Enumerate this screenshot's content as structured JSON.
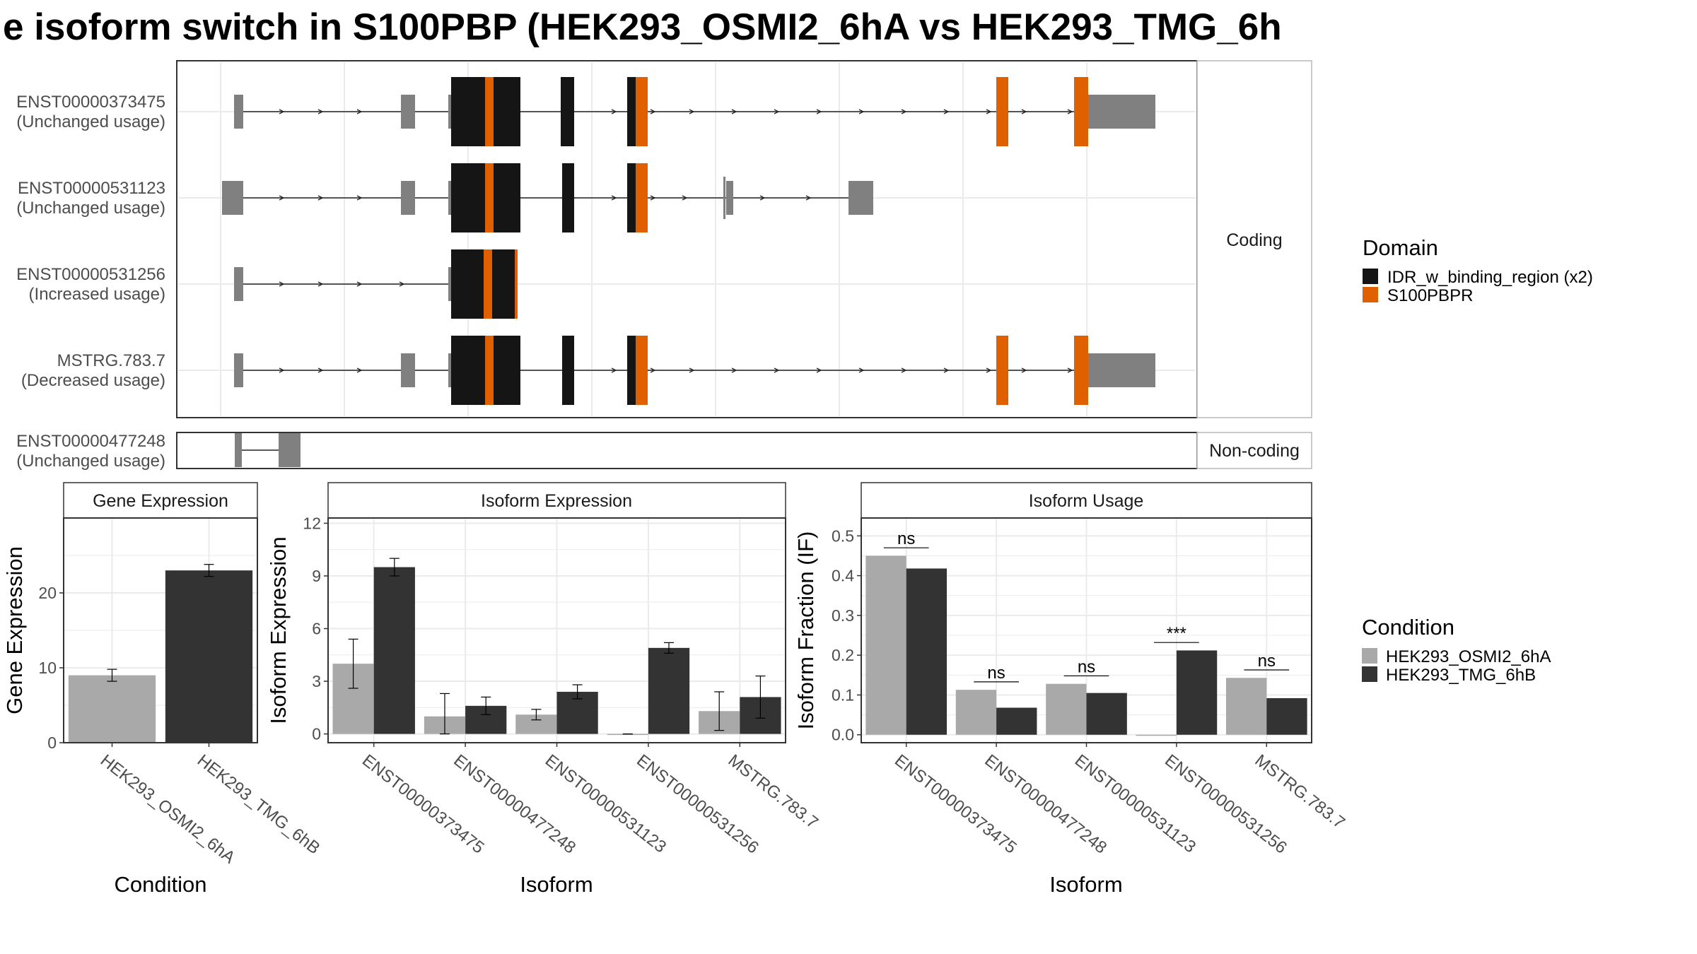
{
  "title": "e isoform switch in S100PBP (HEK293_OSMI2_6hA vs HEK293_TMG_6h",
  "colors": {
    "exon": "#808080",
    "idr": "#151515",
    "s100pbpr": "#e06000",
    "cond_a": "#a9a9a9",
    "cond_b": "#333333",
    "grid": "#ebebeb",
    "panel_border": "#333333",
    "strip_border": "#b8b8b8"
  },
  "structure": {
    "coding_label": "Coding",
    "noncoding_label": "Non-coding",
    "domain_legend": {
      "title": "Domain",
      "items": [
        {
          "label": "IDR_w_binding_region (x2)",
          "color": "#151515"
        },
        {
          "label": "S100PBPR",
          "color": "#e06000"
        }
      ]
    },
    "coding_tracks": [
      {
        "id": "ENST00000373475",
        "usage": "(Unchanged usage)"
      },
      {
        "id": "ENST00000531123",
        "usage": "(Unchanged usage)"
      },
      {
        "id": "ENST00000531256",
        "usage": "(Increased usage)"
      },
      {
        "id": "MSTRG.783.7",
        "usage": "(Decreased usage)"
      }
    ],
    "noncoding_tracks": [
      {
        "id": "ENST00000477248",
        "usage": "(Unchanged usage)"
      }
    ]
  },
  "chart_data": [
    {
      "type": "bar",
      "strip": "Gene Expression",
      "categories": [
        "HEK293_OSMI2_6hA",
        "HEK293_TMG_6hB"
      ],
      "values": [
        9.0,
        23.0
      ],
      "errors": [
        [
          8.2,
          9.8
        ],
        [
          22.2,
          23.8
        ]
      ],
      "xlabel": "Condition",
      "ylabel": "Gene Expression",
      "ylim": [
        0,
        30
      ],
      "yticks": [
        0,
        10,
        20
      ],
      "grid": true
    },
    {
      "type": "bar",
      "strip": "Isoform Expression",
      "categories": [
        "ENST00000373475",
        "ENST00000477248",
        "ENST00000531123",
        "ENST00000531256",
        "MSTRG.783.7"
      ],
      "series": [
        {
          "name": "HEK293_OSMI2_6hA",
          "values": [
            4.0,
            1.0,
            1.1,
            0.0,
            1.3
          ],
          "errors": [
            [
              2.6,
              5.4
            ],
            [
              0.0,
              2.3
            ],
            [
              0.8,
              1.4
            ],
            [
              0.0,
              0.0
            ],
            [
              0.2,
              2.4
            ]
          ]
        },
        {
          "name": "HEK293_TMG_6hB",
          "values": [
            9.5,
            1.6,
            2.4,
            4.9,
            2.1
          ],
          "errors": [
            [
              9.0,
              10.0
            ],
            [
              1.1,
              2.1
            ],
            [
              2.0,
              2.8
            ],
            [
              4.6,
              5.2
            ],
            [
              0.9,
              3.3
            ]
          ]
        }
      ],
      "xlabel": "Isoform",
      "ylabel": "Isoform Expression",
      "ylim": [
        -0.5,
        12.3
      ],
      "yticks": [
        0,
        3,
        6,
        9,
        12
      ],
      "grid": true
    },
    {
      "type": "bar",
      "strip": "Isoform Usage",
      "categories": [
        "ENST00000373475",
        "ENST00000477248",
        "ENST00000531123",
        "ENST00000531256",
        "MSTRG.783.7"
      ],
      "series": [
        {
          "name": "HEK293_OSMI2_6hA",
          "values": [
            0.45,
            0.113,
            0.128,
            0.0,
            0.143
          ]
        },
        {
          "name": "HEK293_TMG_6hB",
          "values": [
            0.418,
            0.068,
            0.105,
            0.212,
            0.092
          ]
        }
      ],
      "significance": [
        "ns",
        "ns",
        "ns",
        "***",
        "ns"
      ],
      "xlabel": "Isoform",
      "ylabel": "Isoform Fraction (IF)",
      "ylim": [
        -0.02,
        0.545
      ],
      "yticks": [
        0.0,
        0.1,
        0.2,
        0.3,
        0.4,
        0.5
      ],
      "grid": true
    }
  ],
  "condition_legend": {
    "title": "Condition",
    "items": [
      {
        "label": "HEK293_OSMI2_6hA",
        "color": "#a9a9a9"
      },
      {
        "label": "HEK293_TMG_6hB",
        "color": "#333333"
      }
    ]
  }
}
